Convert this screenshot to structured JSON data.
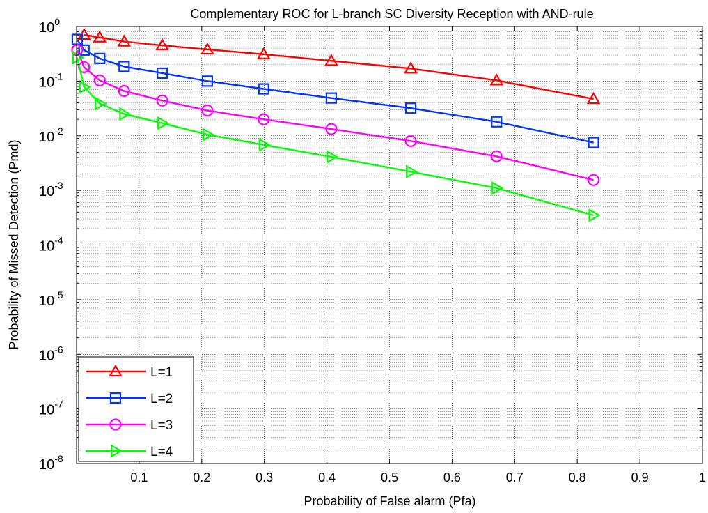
{
  "chart_data": {
    "type": "line",
    "title": "Complementary ROC for L-branch SC Diversity Reception with AND-rule",
    "xlabel": "Probability of False alarm (Pfa)",
    "ylabel": "Probability of Missed Detection (Pmd)",
    "xlim": [
      0,
      1
    ],
    "ylim": [
      1e-08,
      1
    ],
    "yscale": "log",
    "grid": true,
    "legend_position": "bottom-left",
    "x_ticks": [
      "0.1",
      "0.2",
      "0.3",
      "0.4",
      "0.5",
      "0.6",
      "0.7",
      "0.8",
      "0.9",
      "1"
    ],
    "y_ticks": [
      {
        "base": "10",
        "exp": "0",
        "value": 1
      },
      {
        "base": "10",
        "exp": "-1",
        "value": 0.1
      },
      {
        "base": "10",
        "exp": "-2",
        "value": 0.01
      },
      {
        "base": "10",
        "exp": "-3",
        "value": 0.001
      },
      {
        "base": "10",
        "exp": "-4",
        "value": 0.0001
      },
      {
        "base": "10",
        "exp": "-5",
        "value": 1e-05
      },
      {
        "base": "10",
        "exp": "-6",
        "value": 1e-06
      },
      {
        "base": "10",
        "exp": "-7",
        "value": 1e-07
      },
      {
        "base": "10",
        "exp": "-8",
        "value": 1e-08
      }
    ],
    "series": [
      {
        "name": "L=1",
        "color": "#ff0000",
        "marker": "triangle-up",
        "x": [
          0.012,
          0.037,
          0.076,
          0.137,
          0.209,
          0.299,
          0.407,
          0.534,
          0.671,
          0.826
        ],
        "y": [
          0.7,
          0.63,
          0.53,
          0.45,
          0.38,
          0.31,
          0.235,
          0.17,
          0.103,
          0.047
        ]
      },
      {
        "name": "L=2",
        "color": "#0033ff",
        "marker": "square",
        "x": [
          0.001,
          0.012,
          0.037,
          0.076,
          0.137,
          0.209,
          0.299,
          0.407,
          0.534,
          0.671,
          0.826
        ],
        "y": [
          0.58,
          0.37,
          0.26,
          0.185,
          0.14,
          0.1,
          0.072,
          0.049,
          0.032,
          0.018,
          0.0075
        ]
      },
      {
        "name": "L=3",
        "color": "#ff00ff",
        "marker": "circle",
        "x": [
          0.001,
          0.012,
          0.037,
          0.076,
          0.137,
          0.209,
          0.299,
          0.407,
          0.534,
          0.671,
          0.826
        ],
        "y": [
          0.37,
          0.18,
          0.103,
          0.066,
          0.044,
          0.029,
          0.02,
          0.0133,
          0.008,
          0.0042,
          0.00155
        ]
      },
      {
        "name": "L=4",
        "color": "#00ff00",
        "marker": "triangle-right",
        "x": [
          0.001,
          0.012,
          0.037,
          0.076,
          0.137,
          0.209,
          0.299,
          0.407,
          0.534,
          0.671,
          0.826
        ],
        "y": [
          0.27,
          0.078,
          0.039,
          0.025,
          0.017,
          0.0105,
          0.0068,
          0.0041,
          0.0022,
          0.0011,
          0.00035
        ]
      }
    ]
  }
}
